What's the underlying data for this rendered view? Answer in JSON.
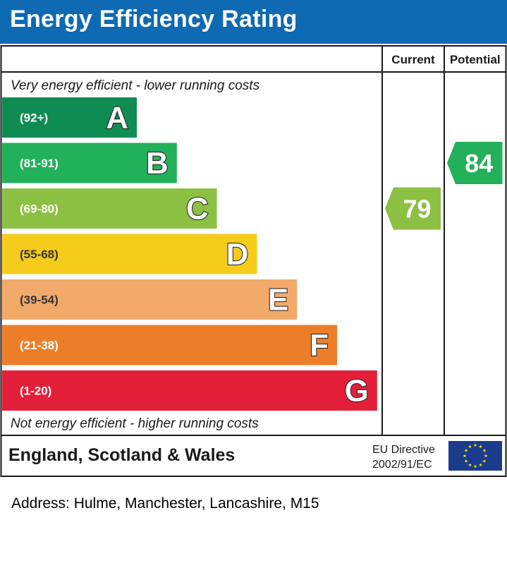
{
  "title": "Energy Efficiency Rating",
  "chart_data": {
    "type": "bar",
    "column_headers": {
      "current": "Current",
      "potential": "Potential"
    },
    "top_note": "Very energy efficient - lower running costs",
    "bottom_note": "Not energy efficient - higher running costs",
    "bands": [
      {
        "range": "(92+)",
        "letter": "A",
        "color": "#0f8c52"
      },
      {
        "range": "(81-91)",
        "letter": "B",
        "color": "#22b05a"
      },
      {
        "range": "(69-80)",
        "letter": "C",
        "color": "#8cc043"
      },
      {
        "range": "(55-68)",
        "letter": "D",
        "color": "#f5cc1a"
      },
      {
        "range": "(39-54)",
        "letter": "E",
        "color": "#f2aa6a"
      },
      {
        "range": "(21-38)",
        "letter": "F",
        "color": "#ec7e2a"
      },
      {
        "range": "(1-20)",
        "letter": "G",
        "color": "#e41f3a"
      }
    ],
    "current": {
      "value": 79,
      "band": "C",
      "color": "#8cc043"
    },
    "potential": {
      "value": 84,
      "band": "B",
      "color": "#22b05a"
    },
    "footer": {
      "region": "England, Scotland & Wales",
      "directive_line1": "EU Directive",
      "directive_line2": "2002/91/EC"
    },
    "flag_color": "#1b3c8c",
    "star_color": "#ffdd00"
  },
  "address": "Address: Hulme, Manchester, Lancashire, M15"
}
